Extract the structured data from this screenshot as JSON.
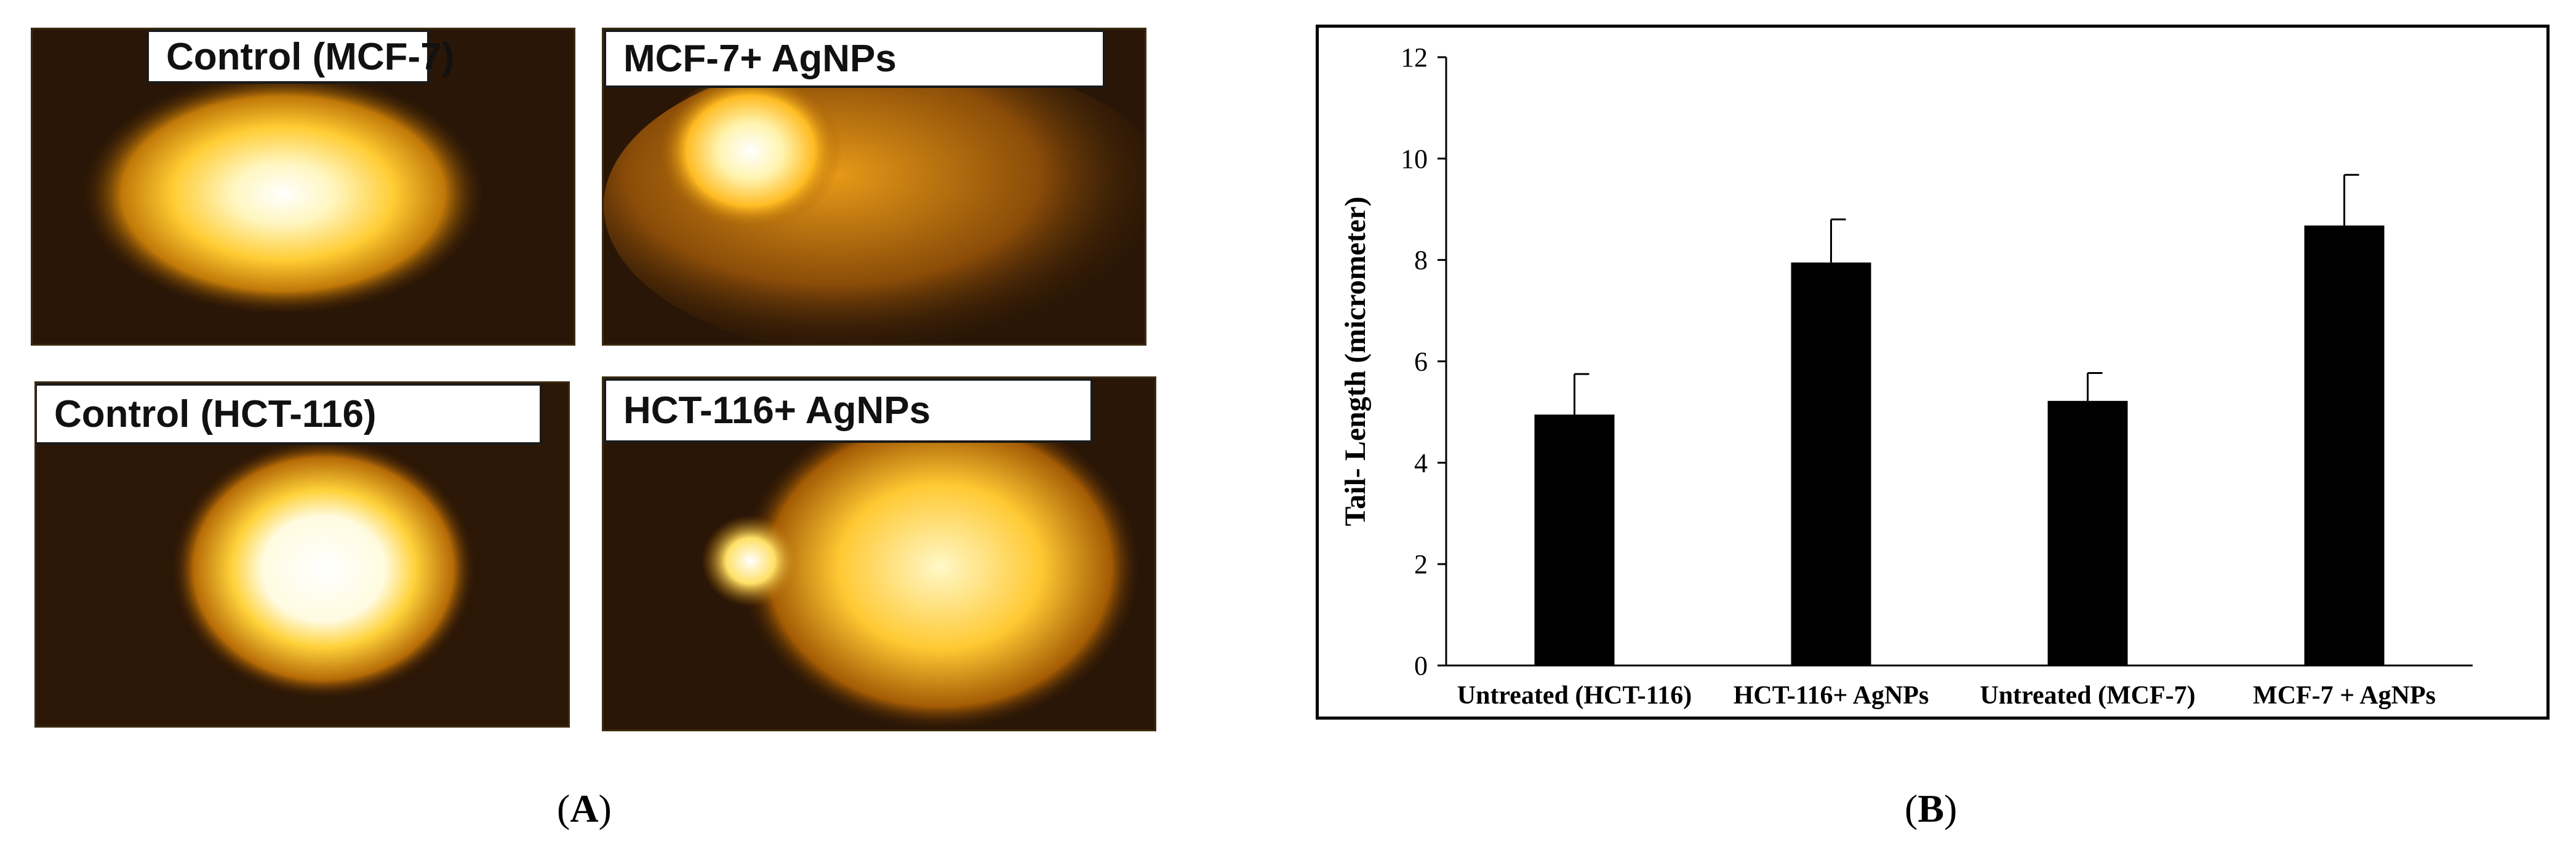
{
  "panel_a": {
    "caption_letter": "A",
    "images": [
      {
        "label": "Control (MCF-7)"
      },
      {
        "label": "MCF-7+ AgNPs"
      },
      {
        "label": "Control (HCT-116)"
      },
      {
        "label": "HCT-116+ AgNPs"
      }
    ]
  },
  "panel_b": {
    "caption_letter": "B"
  },
  "chart_data": {
    "type": "bar",
    "categories": [
      "Untreated (HCT-116)",
      "HCT-116+ AgNPs",
      "Untreated (MCF-7)",
      "MCF-7 + AgNPs"
    ],
    "values": [
      4.95,
      7.95,
      5.22,
      8.68
    ],
    "errors": [
      0.8,
      0.85,
      0.55,
      1.0
    ],
    "ylabel": "Tail- Length (micrometer)",
    "xlabel": "",
    "ylim": [
      0,
      12
    ],
    "yticks": [
      0,
      2,
      4,
      6,
      8,
      10,
      12
    ],
    "bar_color": "#000000",
    "grid": false
  }
}
